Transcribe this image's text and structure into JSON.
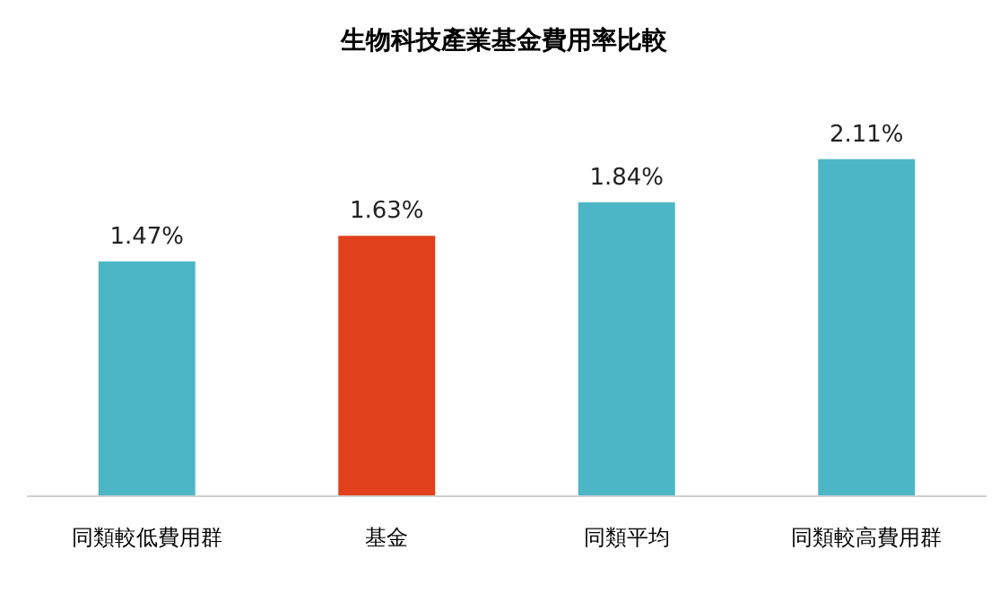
{
  "chart_data": {
    "type": "bar",
    "title": "生物科技產業基金費用率比較",
    "categories": [
      "同類較低費用群",
      "基金",
      "同類平均",
      "同類較高費用群"
    ],
    "values": [
      1.47,
      1.63,
      1.84,
      2.11
    ],
    "colors": [
      "#4db6c6",
      "#e0401c",
      "#4db6c6",
      "#4db6c6"
    ],
    "value_labels": [
      "1.47%",
      "1.63%",
      "1.84%",
      "2.11%"
    ]
  }
}
